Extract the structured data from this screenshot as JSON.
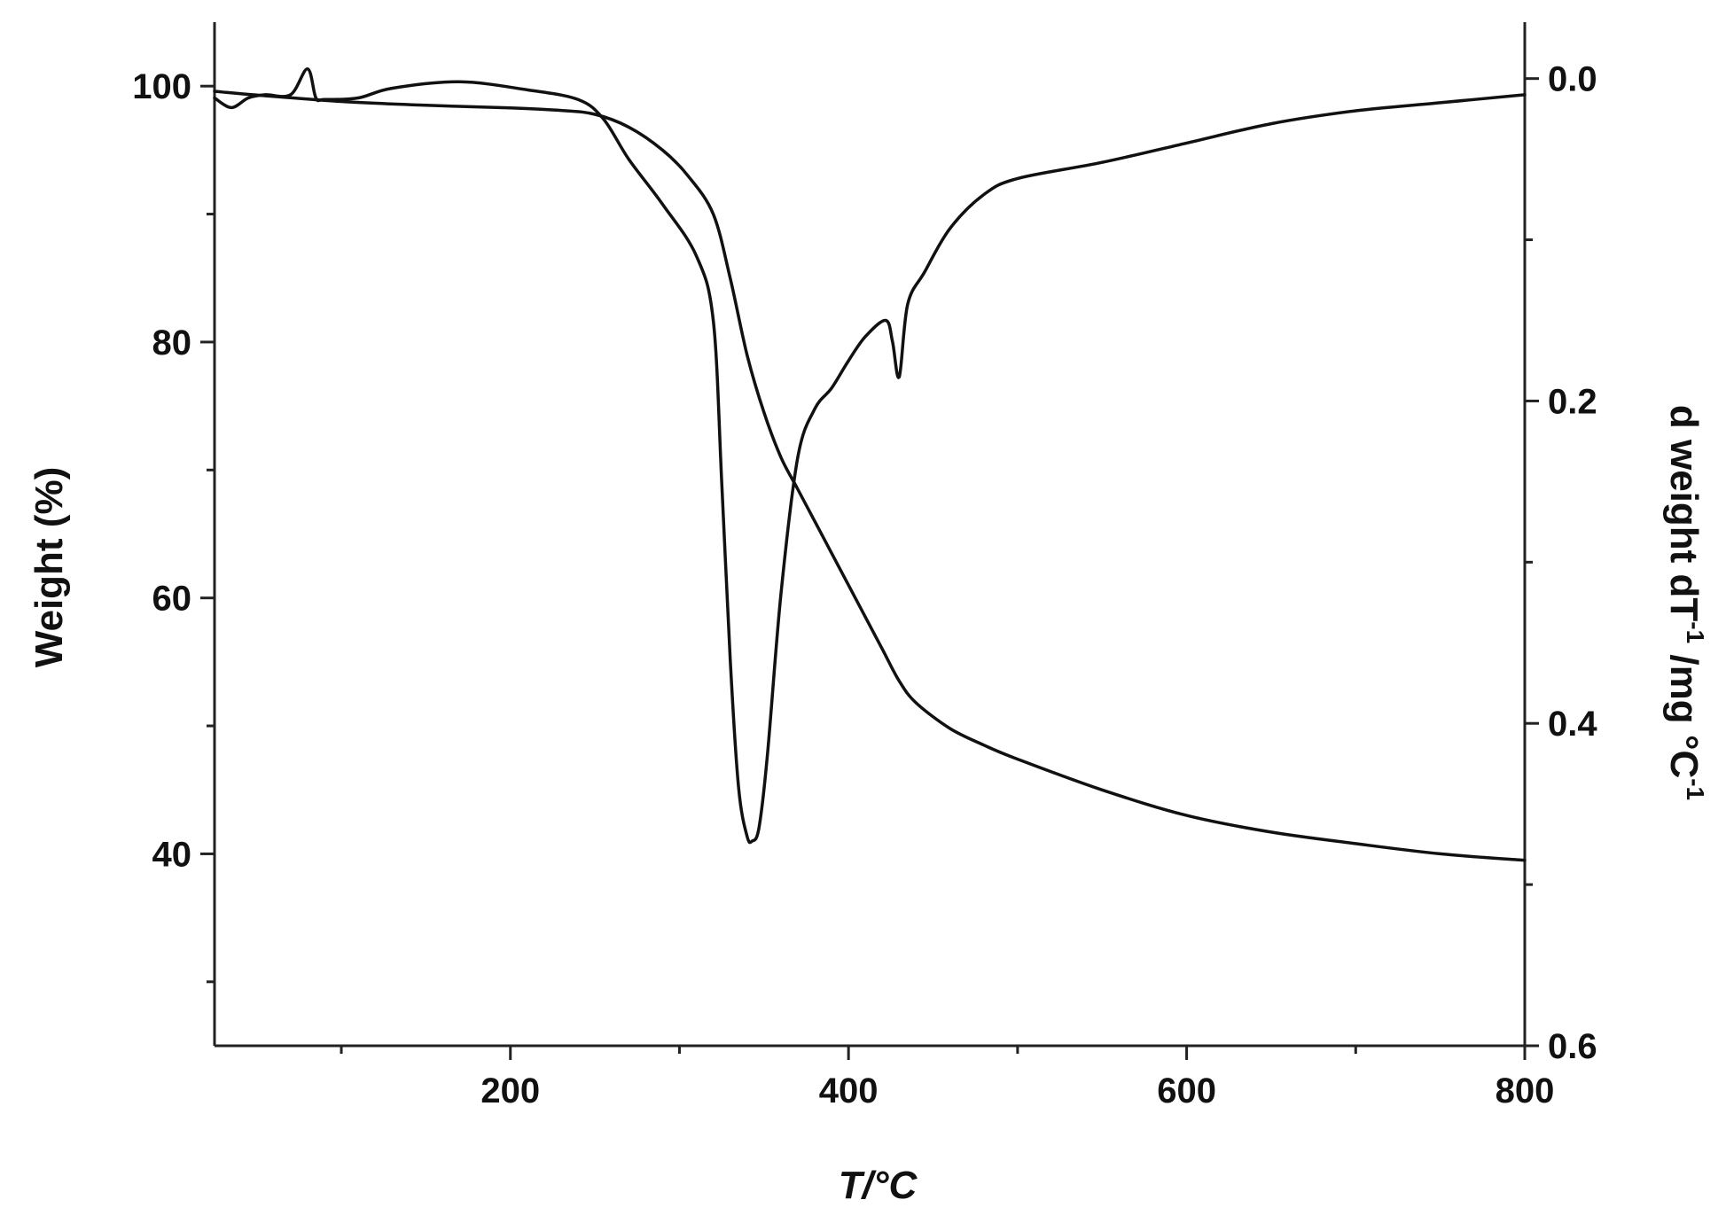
{
  "chart_data": {
    "type": "line",
    "xlabel": "T/°C",
    "ylabel_left": "Weight (%)",
    "ylabel_right_parts": [
      "d weight dT",
      "-1",
      " /mg °C",
      "-1"
    ],
    "x_range": [
      25,
      800
    ],
    "x_ticks": [
      200,
      400,
      600,
      800
    ],
    "x_minor_ticks": [
      100,
      300,
      500,
      700
    ],
    "y_left_range": [
      25,
      105
    ],
    "y_left_ticks": [
      40,
      60,
      80,
      100
    ],
    "y_left_minor_ticks": [
      30,
      50,
      70,
      90
    ],
    "y_right_range": [
      0.6,
      -0.035
    ],
    "y_right_ticks": [
      "0.0",
      "0.2",
      "0.4",
      "0.6"
    ],
    "y_right_tick_values": [
      0.0,
      0.2,
      0.4,
      0.6
    ],
    "y_right_minor_ticks": [
      0.1,
      0.3,
      0.5
    ],
    "grid": false,
    "series": [
      {
        "axis": "left",
        "x": [
          25,
          50,
          100,
          150,
          200,
          230,
          250,
          270,
          290,
          305,
          320,
          330,
          340,
          350,
          360,
          370,
          380,
          390,
          400,
          410,
          420,
          430,
          440,
          460,
          480,
          500,
          550,
          600,
          650,
          700,
          750,
          800
        ],
        "y": [
          99.6,
          99.3,
          98.8,
          98.5,
          98.3,
          98.1,
          97.8,
          96.8,
          95.0,
          93.0,
          90.0,
          85.0,
          79.0,
          74.5,
          71.0,
          68.5,
          66.0,
          63.5,
          61.0,
          58.5,
          56.0,
          53.5,
          51.8,
          49.8,
          48.5,
          47.4,
          45.0,
          43.0,
          41.7,
          40.8,
          40.0,
          39.5
        ]
      },
      {
        "axis": "right",
        "x": [
          25,
          35,
          45,
          55,
          70,
          80,
          85,
          90,
          110,
          130,
          170,
          210,
          240,
          255,
          270,
          290,
          310,
          320,
          325,
          330,
          335,
          340,
          343,
          347,
          352,
          360,
          370,
          380,
          390,
          400,
          410,
          422,
          426,
          430,
          435,
          445,
          460,
          480,
          500,
          550,
          600,
          650,
          700,
          750,
          800
        ],
        "y": [
          0.012,
          0.018,
          0.012,
          0.01,
          0.01,
          -0.006,
          0.012,
          0.013,
          0.012,
          0.006,
          0.002,
          0.007,
          0.013,
          0.025,
          0.05,
          0.078,
          0.11,
          0.15,
          0.25,
          0.36,
          0.44,
          0.47,
          0.473,
          0.465,
          0.42,
          0.32,
          0.235,
          0.205,
          0.192,
          0.175,
          0.16,
          0.15,
          0.163,
          0.185,
          0.14,
          0.12,
          0.093,
          0.072,
          0.062,
          0.052,
          0.04,
          0.028,
          0.02,
          0.015,
          0.01
        ]
      }
    ]
  }
}
